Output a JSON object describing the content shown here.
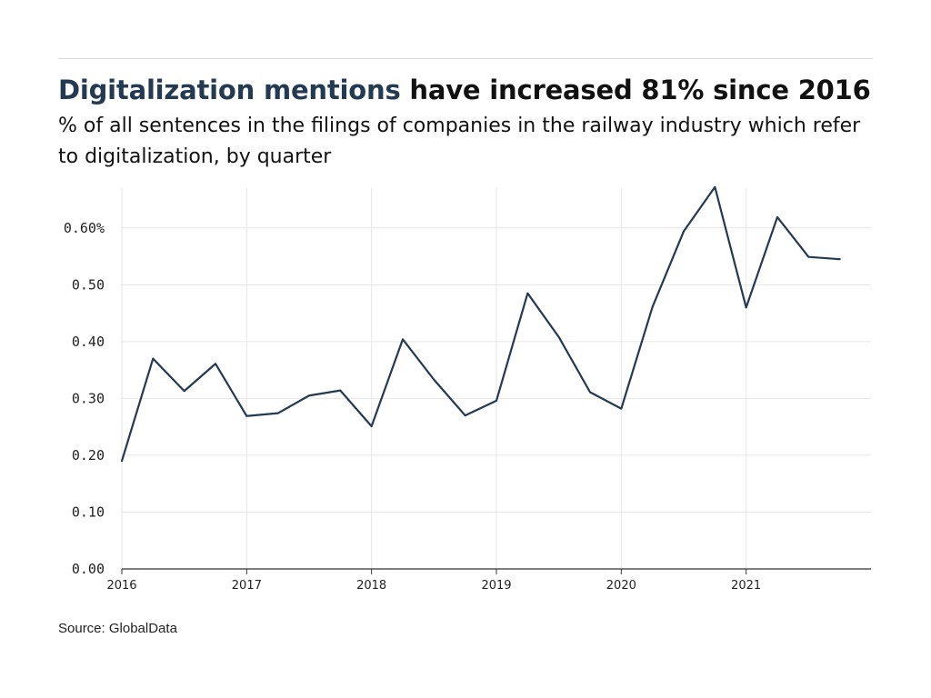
{
  "header": {
    "title_highlight": "Digitalization mentions",
    "title_rest": " have increased 81% since 2016",
    "subtitle": "% of all sentences in the filings of companies in the railway industry which refer to digitalization, by quarter"
  },
  "footer": {
    "source": "Source: GlobalData"
  },
  "colors": {
    "line": "#243a52",
    "title_highlight": "#243a52",
    "gridline": "#e6e6e6",
    "axis": "#333333"
  },
  "chart_data": {
    "type": "line",
    "title": "Digitalization mentions have increased 81% since 2016",
    "subtitle": "% of all sentences in the filings of companies in the railway industry which refer to digitalization, by quarter",
    "xlabel": "",
    "ylabel": "",
    "xlim": [
      "2016 Q1",
      "2021 Q4"
    ],
    "ylim": [
      0,
      0.67
    ],
    "grid": true,
    "legend": "none",
    "x_ticks": [
      "2016",
      "2017",
      "2018",
      "2019",
      "2020",
      "2021"
    ],
    "y_ticks": [
      {
        "value": 0.0,
        "label": "0.00"
      },
      {
        "value": 0.1,
        "label": "0.10"
      },
      {
        "value": 0.2,
        "label": "0.20"
      },
      {
        "value": 0.3,
        "label": "0.30"
      },
      {
        "value": 0.4,
        "label": "0.40"
      },
      {
        "value": 0.5,
        "label": "0.50"
      },
      {
        "value": 0.6,
        "label": "0.60%"
      }
    ],
    "x": [
      "2016 Q1",
      "2016 Q2",
      "2016 Q3",
      "2016 Q4",
      "2017 Q1",
      "2017 Q2",
      "2017 Q3",
      "2017 Q4",
      "2018 Q1",
      "2018 Q2",
      "2018 Q3",
      "2018 Q4",
      "2019 Q1",
      "2019 Q2",
      "2019 Q3",
      "2019 Q4",
      "2020 Q1",
      "2020 Q2",
      "2020 Q3",
      "2020 Q4",
      "2021 Q1",
      "2021 Q2",
      "2021 Q3",
      "2021 Q4"
    ],
    "series": [
      {
        "values": [
          0.19,
          0.37,
          0.313,
          0.361,
          0.269,
          0.274,
          0.305,
          0.314,
          0.251,
          0.404,
          0.333,
          0.27,
          0.296,
          0.485,
          0.408,
          0.311,
          0.282,
          0.461,
          0.594,
          0.672,
          0.46,
          0.619,
          0.549,
          0.545
        ]
      }
    ]
  }
}
